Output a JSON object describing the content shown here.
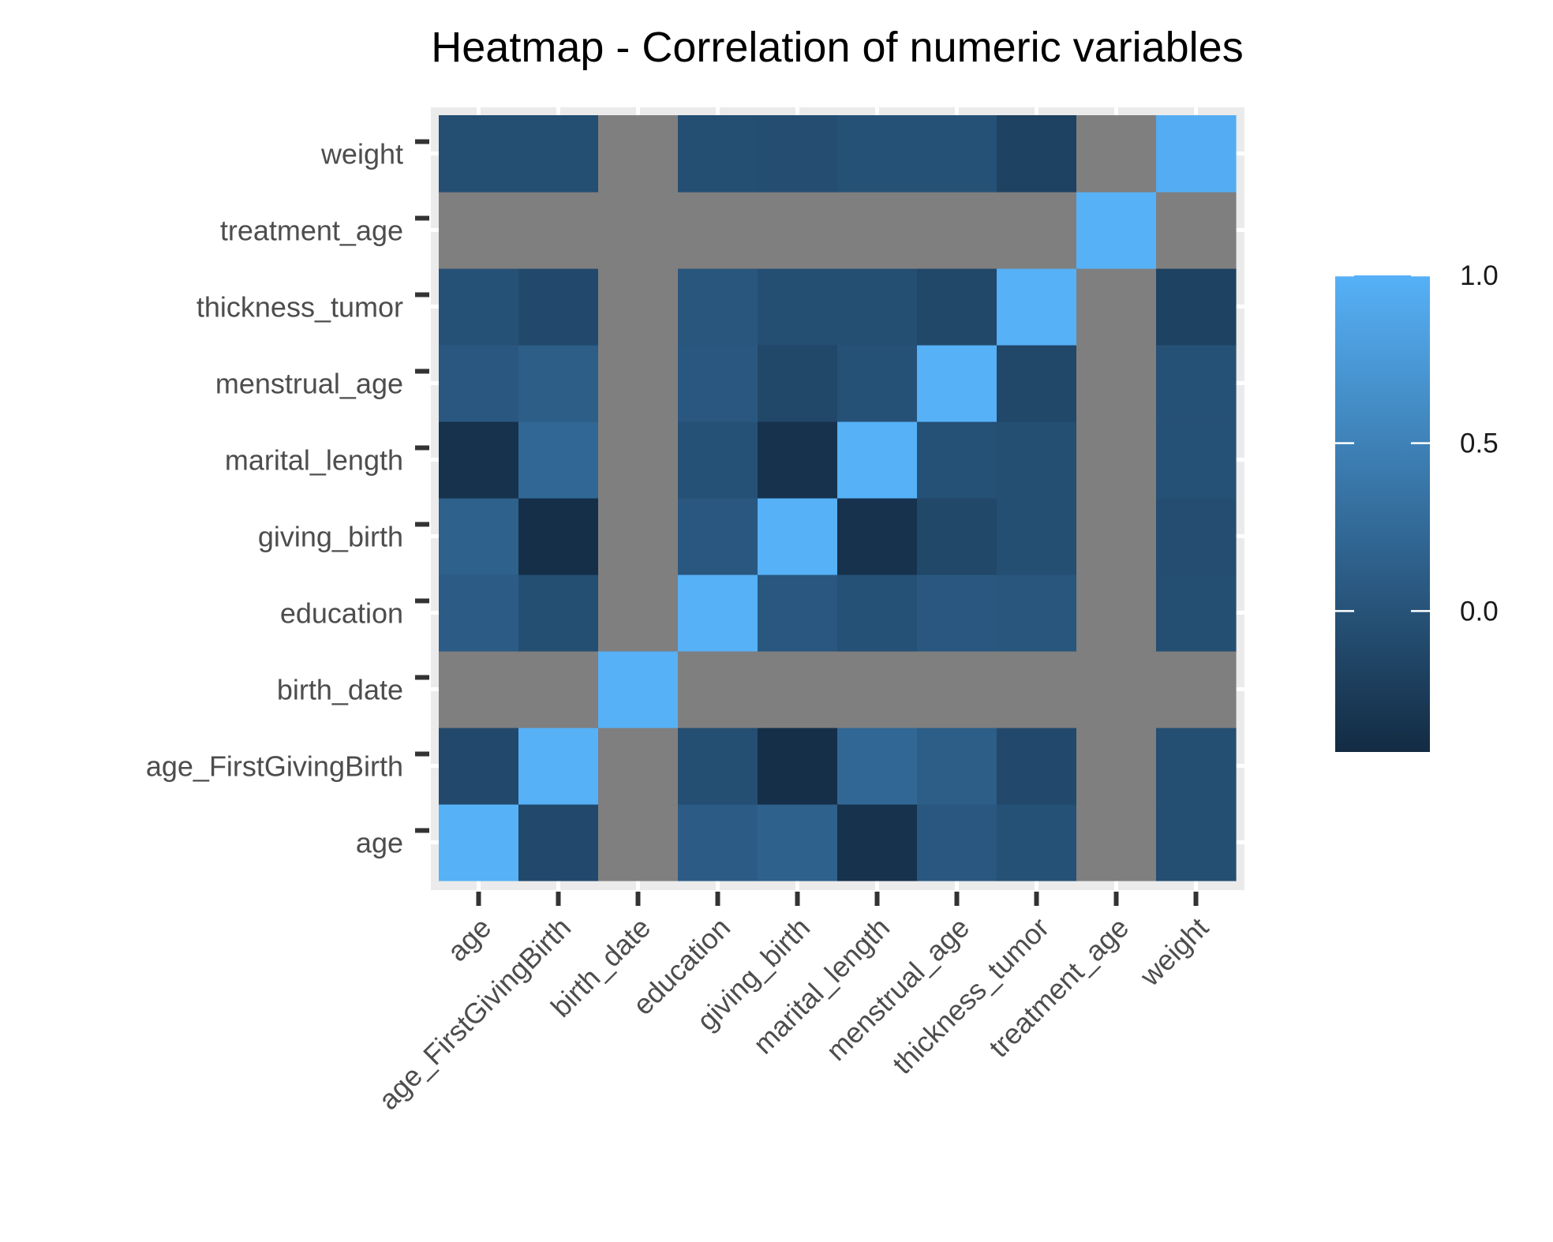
{
  "chart_data": {
    "type": "heatmap",
    "title": "Heatmap - Correlation of numeric variables",
    "xlabel": "",
    "ylabel": "",
    "variables": [
      "age",
      "age_FirstGivingBirth",
      "birth_date",
      "education",
      "giving_birth",
      "marital_length",
      "menstrual_age",
      "thickness_tumor",
      "treatment_age",
      "weight"
    ],
    "x_categories": [
      "age",
      "age_FirstGivingBirth",
      "birth_date",
      "education",
      "giving_birth",
      "marital_length",
      "menstrual_age",
      "thickness_tumor",
      "treatment_age",
      "weight"
    ],
    "y_categories": [
      "age",
      "age_FirstGivingBirth",
      "birth_date",
      "education",
      "giving_birth",
      "marital_length",
      "menstrual_age",
      "thickness_tumor",
      "treatment_age",
      "weight"
    ],
    "values": [
      [
        1.0,
        -0.1,
        null,
        0.1,
        0.15,
        -0.35,
        0.05,
        -0.02,
        null,
        -0.05
      ],
      [
        -0.1,
        1.0,
        null,
        -0.05,
        -0.38,
        0.22,
        0.12,
        -0.1,
        null,
        -0.05
      ],
      [
        null,
        null,
        1.0,
        null,
        null,
        null,
        null,
        null,
        null,
        null
      ],
      [
        0.1,
        -0.05,
        null,
        1.0,
        0.05,
        -0.02,
        0.05,
        0.04,
        null,
        -0.05
      ],
      [
        0.15,
        -0.38,
        null,
        0.05,
        1.0,
        -0.35,
        -0.12,
        -0.05,
        null,
        -0.06
      ],
      [
        -0.35,
        0.22,
        null,
        -0.02,
        -0.35,
        1.0,
        -0.02,
        -0.05,
        null,
        -0.02
      ],
      [
        0.05,
        0.12,
        null,
        0.05,
        -0.12,
        -0.02,
        1.0,
        -0.12,
        null,
        -0.02
      ],
      [
        -0.02,
        -0.1,
        null,
        0.04,
        -0.05,
        -0.05,
        -0.12,
        1.0,
        null,
        -0.18
      ],
      [
        null,
        null,
        null,
        null,
        null,
        null,
        null,
        null,
        1.0,
        null
      ],
      [
        -0.05,
        -0.05,
        null,
        -0.05,
        -0.06,
        -0.02,
        -0.02,
        -0.18,
        null,
        0.96
      ]
    ],
    "na_color": "#7f7f7f",
    "color_low": "#132b43",
    "color_high": "#56b1f7",
    "value_range": [
      -0.42,
      1.0
    ],
    "legend": {
      "position": "right",
      "title": "",
      "ticks": [
        1.0,
        0.5,
        0.0
      ],
      "tick_labels": [
        "1.0",
        "0.5",
        "0.0"
      ]
    },
    "grid": true
  }
}
